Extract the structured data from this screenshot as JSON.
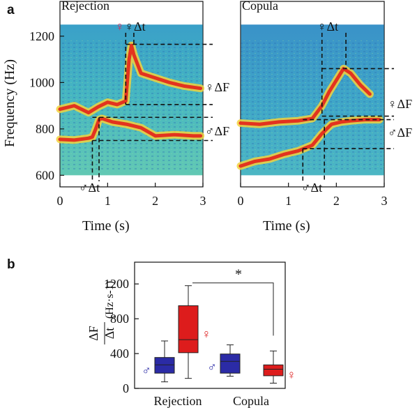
{
  "figure": {
    "panel_a_label": "a",
    "panel_b_label": "b"
  },
  "chart_data": [
    {
      "type": "heatmap",
      "panel": "a",
      "title": "Rejection",
      "xlabel": "Time (s)",
      "ylabel": "Frequency (Hz)",
      "xlim": [
        0,
        3
      ],
      "ylim": [
        550,
        1350
      ],
      "spectrogram_freq_range": [
        600,
        1250
      ],
      "xticks": [
        "0",
        "1",
        "2",
        "3"
      ],
      "yticks": [
        "600",
        "800",
        "1000",
        "1200"
      ],
      "annotations": {
        "female_dt": "♀Δt",
        "female_dF": "♀ΔF",
        "male_dt": "♂Δt",
        "male_dF": "♂ΔF"
      },
      "female_trace": {
        "x": [
          0.0,
          0.3,
          0.6,
          0.8,
          1.0,
          1.2,
          1.38,
          1.45,
          1.5,
          1.55,
          1.7,
          2.0,
          2.3,
          2.6,
          2.95
        ],
        "y": [
          885,
          900,
          870,
          895,
          915,
          905,
          920,
          1100,
          1160,
          1120,
          1040,
          1020,
          1000,
          985,
          975
        ]
      },
      "male_trace": {
        "x": [
          0.0,
          0.3,
          0.6,
          0.68,
          0.75,
          0.82,
          0.88,
          1.1,
          1.4,
          1.7,
          2.0,
          2.4,
          2.8,
          2.95
        ],
        "y": [
          755,
          752,
          760,
          765,
          800,
          840,
          845,
          830,
          820,
          805,
          770,
          775,
          770,
          770
        ]
      },
      "female_markers": {
        "dt": [
          1.38,
          1.55
        ],
        "dF": [
          905,
          1165
        ]
      },
      "male_markers": {
        "dt": [
          0.68,
          0.82
        ],
        "dF": [
          750,
          850
        ]
      }
    },
    {
      "type": "heatmap",
      "panel": "a",
      "title": "Copula",
      "xlabel": "Time (s)",
      "ylabel": "",
      "xlim": [
        0,
        3
      ],
      "ylim": [
        550,
        1350
      ],
      "spectrogram_freq_range": [
        600,
        1250
      ],
      "xticks": [
        "0",
        "1",
        "2",
        "3"
      ],
      "yticks": [],
      "annotations": {
        "female_dt": "♀Δt",
        "female_dF": "♀ΔF",
        "male_dt": "♂Δt",
        "male_dF": "♂ΔF"
      },
      "female_trace": {
        "x": [
          0.0,
          0.4,
          0.8,
          1.2,
          1.5,
          1.7,
          1.85,
          2.0,
          2.15,
          2.3,
          2.5,
          2.7
        ],
        "y": [
          825,
          820,
          830,
          835,
          845,
          900,
          960,
          1010,
          1060,
          1040,
          990,
          950
        ]
      },
      "male_trace": {
        "x": [
          0.0,
          0.3,
          0.6,
          0.9,
          1.2,
          1.5,
          1.7,
          1.9,
          2.1,
          2.3,
          2.6,
          2.9
        ],
        "y": [
          640,
          660,
          670,
          690,
          705,
          730,
          780,
          820,
          830,
          835,
          840,
          840
        ]
      },
      "female_markers": {
        "dt": [
          1.7,
          2.2
        ],
        "dF": [
          855,
          1060
        ]
      },
      "male_markers": {
        "dt": [
          1.3,
          1.75
        ],
        "dF": [
          715,
          840
        ]
      }
    },
    {
      "type": "box",
      "panel": "b",
      "ylabel_num": "ΔF",
      "ylabel_den": "Δt",
      "ylabel_unit": "(Hz·s-1)",
      "ylim": [
        0,
        1450
      ],
      "yticks": [
        "0",
        "400",
        "800",
        "1200"
      ],
      "categories": [
        "Rejection",
        "Copula"
      ],
      "significance": "*",
      "series": [
        {
          "male_symbol": "♂",
          "female_symbol": "♀",
          "male_color": "#2b2ba6",
          "female_color": "#dd1c1c",
          "boxes": [
            {
              "group": "Rejection",
              "sex": "male",
              "whisker_low": 75,
              "q1": 175,
              "median": 270,
              "q3": 355,
              "whisker_high": 545
            },
            {
              "group": "Rejection",
              "sex": "female",
              "whisker_low": 115,
              "q1": 410,
              "median": 560,
              "q3": 950,
              "whisker_high": 1180
            },
            {
              "group": "Copula",
              "sex": "male",
              "whisker_low": 140,
              "q1": 175,
              "median": 310,
              "q3": 395,
              "whisker_high": 500
            },
            {
              "group": "Copula",
              "sex": "female",
              "whisker_low": 60,
              "q1": 145,
              "median": 220,
              "q3": 270,
              "whisker_high": 430
            }
          ]
        }
      ]
    }
  ]
}
